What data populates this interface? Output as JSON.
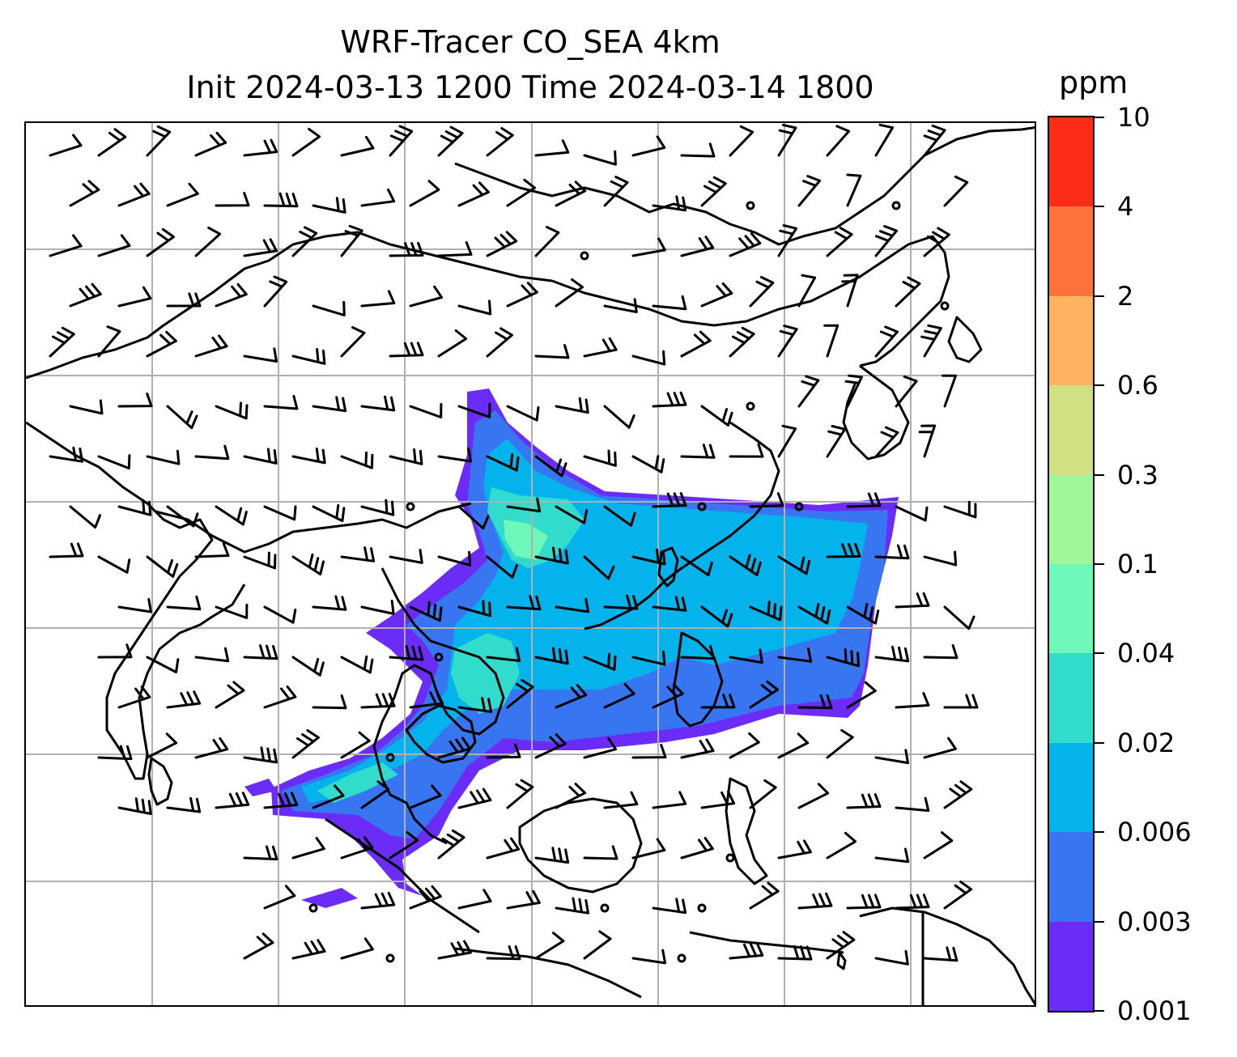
{
  "header": {
    "title_line1": "WRF-Tracer CO_SEA 4km",
    "title_line2": "Init 2024-03-13 1200 Time 2024-03-14 1800"
  },
  "colorbar": {
    "unit": "ppm",
    "levels": [
      "0.001",
      "0.003",
      "0.006",
      "0.02",
      "0.04",
      "0.1",
      "0.3",
      "0.6",
      "2",
      "4",
      "10"
    ],
    "colors": [
      "#6a2cf6",
      "#3776f0",
      "#04b3ec",
      "#32dccc",
      "#6df7b8",
      "#9ff79a",
      "#d2e084",
      "#fdb25f",
      "#fd713a",
      "#fd2c18"
    ]
  },
  "map": {
    "grid_color": "#b0b0b0",
    "coastline_color": "#000000"
  }
}
